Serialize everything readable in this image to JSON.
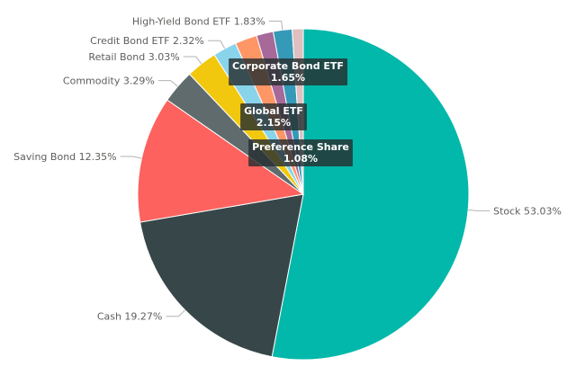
{
  "chart_data": {
    "type": "pie",
    "slices": [
      {
        "label": "Stock",
        "value": 53.03,
        "color": "#01B8AA"
      },
      {
        "label": "Cash",
        "value": 19.27,
        "color": "#374649"
      },
      {
        "label": "Saving Bond",
        "value": 12.35,
        "color": "#FD625E"
      },
      {
        "label": "Commodity",
        "value": 3.29,
        "color": "#5F6B6D"
      },
      {
        "label": "Retail Bond",
        "value": 3.03,
        "color": "#F2C80F"
      },
      {
        "label": "Credit Bond ETF",
        "value": 2.32,
        "color": "#8AD4EB"
      },
      {
        "label": "Global ETF",
        "value": 2.15,
        "color": "#FE9666"
      },
      {
        "label": "Corporate Bond ETF",
        "value": 1.65,
        "color": "#A66999"
      },
      {
        "label": "High-Yield Bond ETF",
        "value": 1.83,
        "color": "#3599B8"
      },
      {
        "label": "Preference Share",
        "value": 1.08,
        "color": "#DFBFBF"
      }
    ],
    "outside_labels": [
      {
        "text": "Stock 53.03%",
        "slice": 0
      },
      {
        "text": "Cash 19.27%",
        "slice": 1
      },
      {
        "text": "Saving Bond 12.35%",
        "slice": 2
      },
      {
        "text": "Commodity 3.29%",
        "slice": 3
      },
      {
        "text": "Retail Bond 3.03%",
        "slice": 4
      },
      {
        "text": "Credit Bond ETF 2.32%",
        "slice": 5
      },
      {
        "text": "High-Yield Bond ETF 1.83%",
        "slice": 8
      }
    ],
    "tooltips": [
      {
        "title": "Corporate Bond ETF",
        "value": "1.65%"
      },
      {
        "title": "Global ETF",
        "value": "2.15%"
      },
      {
        "title": "Preference Share",
        "value": "1.08%"
      }
    ]
  }
}
